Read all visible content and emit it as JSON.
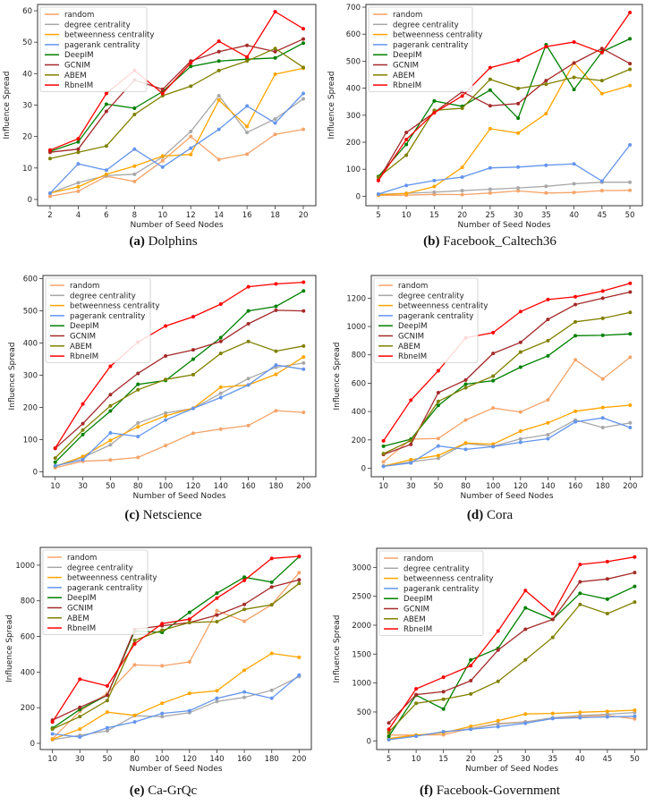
{
  "series_styles": [
    {
      "name": "random",
      "color": "#f4a46a"
    },
    {
      "name": "degree centrality",
      "color": "#a8a8a8"
    },
    {
      "name": "betweenness centrality",
      "color": "#ffa500"
    },
    {
      "name": "pagerank centrality",
      "color": "#6495ed"
    },
    {
      "name": "DeepIM",
      "color": "#008000"
    },
    {
      "name": "GCNIM",
      "color": "#a52a2a"
    },
    {
      "name": "ABEM",
      "color": "#808000"
    },
    {
      "name": "RbneIM",
      "color": "#ff0000"
    }
  ],
  "chart_data": [
    {
      "type": "line",
      "caption_letter": "(a)",
      "caption_title": "Dolphins",
      "xlabel": "Number of Seed Nodes",
      "ylabel": "Influence Spread",
      "categories": [
        "2",
        "4",
        "6",
        "8",
        "10",
        "12",
        "14",
        "16",
        "18",
        "20"
      ],
      "ylim": [
        -2,
        62
      ],
      "yticks": [
        0,
        10,
        20,
        30,
        40,
        50,
        60
      ],
      "legend": "top-left",
      "series": [
        {
          "name": "random",
          "values": [
            1.0,
            2.6,
            7.4,
            5.7,
            12.3,
            20.0,
            12.7,
            14.4,
            20.7,
            22.3
          ]
        },
        {
          "name": "degree centrality",
          "values": [
            2.0,
            5.3,
            7.6,
            8.0,
            13.5,
            21.6,
            33.0,
            21.3,
            25.6,
            32.0
          ]
        },
        {
          "name": "betweenness centrality",
          "values": [
            2.0,
            4.0,
            8.0,
            10.6,
            13.8,
            14.3,
            31.6,
            23.2,
            39.8,
            41.7
          ]
        },
        {
          "name": "pagerank centrality",
          "values": [
            2.0,
            11.3,
            9.3,
            16.0,
            10.3,
            16.3,
            22.3,
            29.7,
            24.3,
            33.7
          ]
        },
        {
          "name": "DeepIM",
          "values": [
            15.3,
            18.3,
            30.3,
            29.0,
            34.3,
            42.3,
            44.0,
            44.6,
            45.0,
            49.7
          ]
        },
        {
          "name": "GCNIM",
          "values": [
            15.0,
            16.0,
            28.0,
            38.0,
            35.0,
            44.0,
            47.0,
            49.0,
            47.0,
            51.0
          ]
        },
        {
          "name": "ABEM",
          "values": [
            13.0,
            15.0,
            17.0,
            27.0,
            33.0,
            36.0,
            41.0,
            44.0,
            48.0,
            42.0
          ]
        },
        {
          "name": "RbneIM",
          "values": [
            15.7,
            19.3,
            33.7,
            41.0,
            33.7,
            43.4,
            50.3,
            45.3,
            59.7,
            54.3
          ]
        }
      ]
    },
    {
      "type": "line",
      "caption_letter": "(b)",
      "caption_title": "Facebook_Caltech36",
      "xlabel": "Number of Seed Nodes",
      "ylabel": "Influence Spread",
      "categories": [
        "5",
        "10",
        "15",
        "20",
        "25",
        "30",
        "35",
        "40",
        "45",
        "50"
      ],
      "ylim": [
        -35,
        710
      ],
      "yticks": [
        0,
        100,
        200,
        300,
        400,
        500,
        600,
        700
      ],
      "legend": "top-left",
      "series": [
        {
          "name": "random",
          "values": [
            3,
            4,
            7,
            6,
            12,
            20,
            12,
            14,
            21,
            22
          ]
        },
        {
          "name": "degree centrality",
          "values": [
            7,
            11,
            15,
            21,
            26,
            31,
            37,
            46,
            52,
            52
          ]
        },
        {
          "name": "betweenness centrality",
          "values": [
            5,
            10,
            36,
            107,
            250,
            234,
            306,
            494,
            380,
            410
          ]
        },
        {
          "name": "pagerank centrality",
          "values": [
            8,
            40,
            58,
            71,
            105,
            108,
            115,
            120,
            56,
            190
          ]
        },
        {
          "name": "DeepIM",
          "values": [
            73,
            192,
            353,
            333,
            393,
            289,
            561,
            395,
            535,
            583
          ]
        },
        {
          "name": "GCNIM",
          "values": [
            60,
            236,
            310,
            387,
            335,
            343,
            428,
            493,
            547,
            491
          ]
        },
        {
          "name": "ABEM",
          "values": [
            70,
            152,
            318,
            326,
            433,
            399,
            415,
            440,
            428,
            470
          ]
        },
        {
          "name": "RbneIM",
          "values": [
            58,
            210,
            309,
            371,
            476,
            503,
            554,
            571,
            532,
            680
          ]
        }
      ]
    },
    {
      "type": "line",
      "caption_letter": "(c)",
      "caption_title": "Netscience",
      "xlabel": "Number of Seed Nodes",
      "ylabel": "Influence Spread",
      "categories": [
        "10",
        "30",
        "50",
        "80",
        "100",
        "120",
        "140",
        "160",
        "180",
        "200"
      ],
      "ylim": [
        -15,
        610
      ],
      "yticks": [
        0,
        100,
        200,
        300,
        400,
        500,
        600
      ],
      "legend": "top-left",
      "series": [
        {
          "name": "random",
          "values": [
            13,
            33,
            37,
            45,
            82,
            120,
            133,
            144,
            190,
            185
          ]
        },
        {
          "name": "degree centrality",
          "values": [
            17,
            45,
            84,
            152,
            183,
            197,
            244,
            290,
            325,
            338
          ]
        },
        {
          "name": "betweenness centrality",
          "values": [
            17,
            48,
            98,
            140,
            174,
            198,
            263,
            270,
            303,
            357
          ]
        },
        {
          "name": "pagerank centrality",
          "values": [
            19,
            38,
            121,
            110,
            161,
            197,
            231,
            270,
            332,
            319
          ]
        },
        {
          "name": "DeepIM",
          "values": [
            30,
            116,
            189,
            272,
            284,
            350,
            417,
            500,
            514,
            562
          ]
        },
        {
          "name": "GCNIM",
          "values": [
            73,
            150,
            240,
            306,
            360,
            379,
            405,
            460,
            502,
            500
          ]
        },
        {
          "name": "ABEM",
          "values": [
            43,
            130,
            205,
            255,
            287,
            302,
            368,
            405,
            375,
            391
          ]
        },
        {
          "name": "RbneIM",
          "values": [
            74,
            211,
            328,
            403,
            453,
            482,
            521,
            575,
            584,
            589
          ]
        }
      ]
    },
    {
      "type": "line",
      "caption_letter": "(d)",
      "caption_title": "Cora",
      "xlabel": "Number of Seed Nodes",
      "ylabel": "Influence Spread",
      "categories": [
        "10",
        "30",
        "50",
        "80",
        "100",
        "120",
        "140",
        "160",
        "180",
        "200"
      ],
      "ylim": [
        -60,
        1360
      ],
      "yticks": [
        0,
        200,
        400,
        600,
        800,
        1000,
        1200
      ],
      "legend": "top-left",
      "series": [
        {
          "name": "random",
          "values": [
            45,
            205,
            210,
            340,
            425,
            397,
            483,
            765,
            630,
            783
          ]
        },
        {
          "name": "degree centrality",
          "values": [
            15,
            45,
            70,
            175,
            155,
            207,
            237,
            340,
            287,
            320
          ]
        },
        {
          "name": "betweenness centrality",
          "values": [
            15,
            60,
            90,
            178,
            170,
            262,
            320,
            402,
            428,
            445
          ]
        },
        {
          "name": "pagerank centrality",
          "values": [
            13,
            37,
            157,
            133,
            152,
            183,
            208,
            327,
            355,
            287
          ]
        },
        {
          "name": "DeepIM",
          "values": [
            155,
            205,
            443,
            593,
            618,
            713,
            793,
            935,
            938,
            948
          ]
        },
        {
          "name": "GCNIM",
          "values": [
            97,
            168,
            533,
            622,
            810,
            888,
            1050,
            1155,
            1200,
            1243
          ]
        },
        {
          "name": "ABEM",
          "values": [
            103,
            195,
            472,
            568,
            650,
            820,
            900,
            1033,
            1058,
            1100
          ]
        },
        {
          "name": "RbneIM",
          "values": [
            193,
            480,
            688,
            920,
            957,
            1105,
            1190,
            1210,
            1250,
            1305
          ]
        }
      ]
    },
    {
      "type": "line",
      "caption_letter": "(e)",
      "caption_title": "Ca-GrQc",
      "xlabel": "Number of Seed Nodes",
      "ylabel": "Influence Spread",
      "categories": [
        "10",
        "30",
        "50",
        "80",
        "100",
        "120",
        "140",
        "160",
        "180",
        "200"
      ],
      "ylim": [
        -35,
        1100
      ],
      "yticks": [
        0,
        200,
        400,
        600,
        800,
        1000
      ],
      "legend": "top-left",
      "series": [
        {
          "name": "random",
          "values": [
            25,
            180,
            280,
            440,
            435,
            457,
            745,
            685,
            778,
            958
          ]
        },
        {
          "name": "degree centrality",
          "values": [
            20,
            45,
            70,
            155,
            150,
            172,
            235,
            258,
            298,
            375
          ]
        },
        {
          "name": "betweenness centrality",
          "values": [
            23,
            80,
            175,
            157,
            225,
            280,
            295,
            410,
            505,
            483
          ]
        },
        {
          "name": "pagerank centrality",
          "values": [
            53,
            35,
            87,
            120,
            168,
            183,
            253,
            288,
            253,
            383
          ]
        },
        {
          "name": "DeepIM",
          "values": [
            85,
            190,
            270,
            630,
            623,
            735,
            843,
            933,
            905,
            1048
          ]
        },
        {
          "name": "GCNIM",
          "values": [
            130,
            202,
            270,
            640,
            660,
            678,
            720,
            780,
            878,
            918
          ]
        },
        {
          "name": "ABEM",
          "values": [
            80,
            150,
            240,
            578,
            635,
            678,
            683,
            752,
            778,
            898
          ]
        },
        {
          "name": "RbneIM",
          "values": [
            120,
            360,
            322,
            558,
            672,
            697,
            815,
            915,
            1038,
            1050
          ]
        }
      ]
    },
    {
      "type": "line",
      "caption_letter": "(f)",
      "caption_title": "Facebook-Government",
      "xlabel": "Number of Seed Nodes",
      "ylabel": "Influence Spread",
      "categories": [
        "5",
        "10",
        "15",
        "20",
        "25",
        "30",
        "35",
        "40",
        "45",
        "50"
      ],
      "ylim": [
        -150,
        3330
      ],
      "yticks": [
        0,
        500,
        1000,
        1500,
        2000,
        2500,
        3000
      ],
      "legend": "top-left",
      "series": [
        {
          "name": "random",
          "values": [
            100,
            100,
            105,
            215,
            300,
            330,
            395,
            420,
            440,
            380
          ]
        },
        {
          "name": "degree centrality",
          "values": [
            30,
            90,
            150,
            210,
            290,
            325,
            400,
            440,
            460,
            490
          ]
        },
        {
          "name": "betweenness centrality",
          "values": [
            40,
            100,
            140,
            250,
            350,
            465,
            475,
            495,
            510,
            530
          ]
        },
        {
          "name": "pagerank centrality",
          "values": [
            20,
            80,
            160,
            200,
            245,
            305,
            385,
            400,
            415,
            425
          ]
        },
        {
          "name": "DeepIM",
          "values": [
            80,
            790,
            550,
            1400,
            1600,
            2300,
            2100,
            2550,
            2450,
            2670
          ]
        },
        {
          "name": "GCNIM",
          "values": [
            310,
            800,
            850,
            1040,
            1570,
            1930,
            2100,
            2750,
            2800,
            2910
          ]
        },
        {
          "name": "ABEM",
          "values": [
            150,
            650,
            720,
            810,
            1030,
            1400,
            1790,
            2360,
            2200,
            2400
          ]
        },
        {
          "name": "RbneIM",
          "values": [
            200,
            900,
            1100,
            1300,
            1900,
            2600,
            2200,
            3050,
            3100,
            3180
          ]
        }
      ]
    }
  ]
}
